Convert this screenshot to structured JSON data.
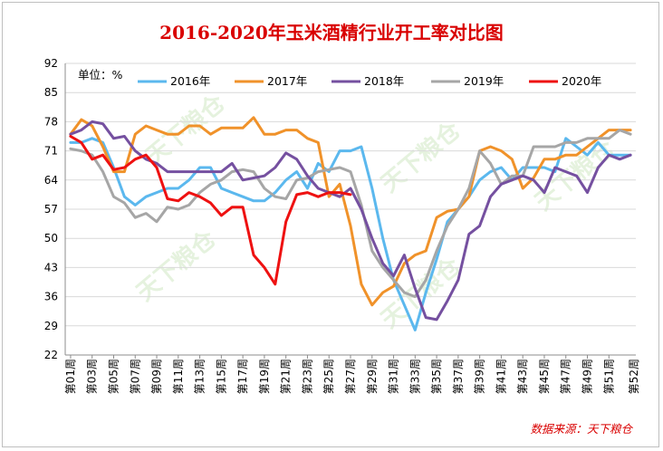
{
  "chart_data": {
    "type": "line",
    "title": "2016-2020年玉米酒精行业开工率对比图",
    "unit_label": "单位：%",
    "source": "数据来源：天下粮仓",
    "watermark": "天下粮仓",
    "y_ticks": [
      "92",
      "85",
      "78",
      "71",
      "64",
      "57",
      "50",
      "43",
      "36",
      "29",
      "22"
    ],
    "ylim": [
      22,
      92
    ],
    "x_tick_labels": [
      "第01周",
      "第03周",
      "第05周",
      "第07周",
      "第09周",
      "第11周",
      "第13周",
      "第15周",
      "第17周",
      "第19周",
      "第21周",
      "第23周",
      "第25周",
      "第27周",
      "第29周",
      "第31周",
      "第33周",
      "第35周",
      "第37周",
      "第39周",
      "第41周",
      "第43周",
      "第45周",
      "第47周",
      "第49周",
      "第51周"
    ],
    "x_last_label": "第52周",
    "weeks": 53,
    "legend_placement": "top",
    "series": [
      {
        "name": "2016年",
        "color": "#5bb8ee",
        "values": [
          73,
          73,
          74,
          73,
          67,
          60,
          58,
          60,
          61,
          62,
          62,
          64,
          67,
          67,
          62,
          61,
          60,
          59,
          59,
          61,
          64,
          66,
          62,
          68,
          66,
          71,
          71,
          72,
          62,
          50,
          40,
          34,
          28,
          37,
          45,
          54,
          57,
          60,
          64,
          66,
          67,
          64,
          67,
          67,
          67,
          66,
          74,
          72,
          70,
          73,
          70,
          70,
          70,
          75,
          75,
          75.5
        ]
      },
      {
        "name": "2017年",
        "color": "#f0922a",
        "values": [
          75,
          78.5,
          77,
          72,
          66,
          66,
          75,
          77,
          76,
          75,
          75,
          77,
          77,
          75,
          76.5,
          76.5,
          76.5,
          79,
          75,
          75,
          76,
          76,
          74,
          73,
          60,
          63,
          53,
          39,
          34,
          37,
          38.5,
          44,
          46,
          47,
          55,
          56.5,
          57,
          60,
          71,
          72,
          71,
          69,
          62,
          64.5,
          69,
          69,
          70,
          70,
          72,
          74,
          76,
          76,
          76,
          76,
          74,
          77
        ]
      },
      {
        "name": "2018年",
        "color": "#7550a0",
        "values": [
          75,
          76,
          78,
          77.5,
          74,
          74.5,
          71,
          69,
          68,
          66,
          66,
          66,
          66,
          66,
          66,
          68,
          64,
          64.5,
          65,
          67,
          70.5,
          69,
          65,
          62,
          61,
          60,
          62,
          57,
          50,
          44,
          41,
          46,
          38,
          31,
          30.5,
          35,
          40,
          51,
          53,
          60,
          63,
          64,
          65,
          64,
          61,
          67,
          66,
          65,
          61,
          67,
          70,
          69,
          70,
          66.5
        ]
      },
      {
        "name": "2019年",
        "color": "#a6a6a6",
        "values": [
          71.5,
          71,
          70,
          66,
          60,
          58.5,
          55,
          56,
          54,
          57.5,
          57,
          58,
          61,
          63,
          64,
          66,
          66.5,
          66,
          62,
          60,
          59.5,
          64,
          64.5,
          66,
          66.5,
          67,
          66,
          58,
          47,
          43,
          40,
          37,
          36,
          40,
          47,
          53,
          57,
          62,
          71,
          68,
          63,
          65,
          65,
          72,
          72,
          72,
          73,
          73,
          74,
          74,
          74,
          76,
          75,
          76
        ]
      },
      {
        "name": "2020年",
        "color": "#ee1111",
        "values": [
          74.5,
          73,
          69,
          70,
          66.5,
          67,
          69,
          70,
          67,
          59.5,
          59,
          61,
          60,
          58.5,
          55.5,
          57.5,
          57.5,
          46,
          43,
          39,
          54,
          60.5,
          61,
          60,
          61,
          61,
          60.5
        ]
      }
    ]
  }
}
